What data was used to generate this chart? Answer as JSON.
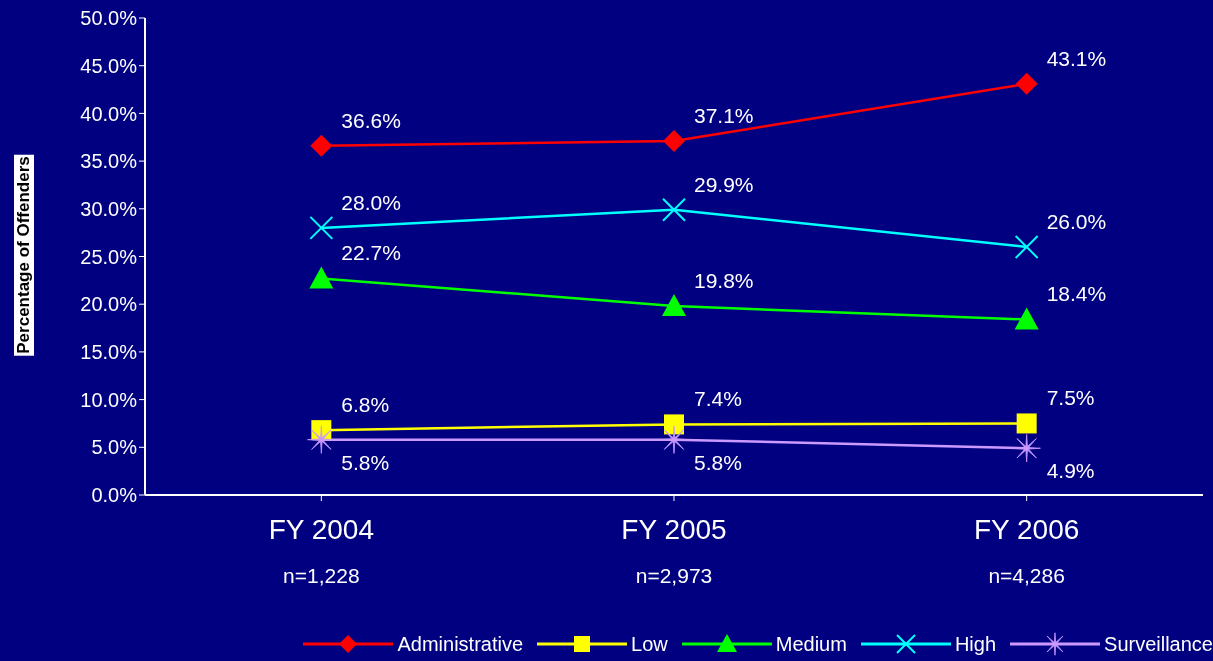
{
  "chart_data": {
    "type": "line",
    "ylabel": "Percentage of Offenders",
    "categories": [
      "FY 2004",
      "FY 2005",
      "FY 2006"
    ],
    "annotations": [
      "n=1,228",
      "n=2,973",
      "n=4,286"
    ],
    "ylim": [
      0,
      50
    ],
    "yticks": [
      {
        "value": 0,
        "label": "0.0%"
      },
      {
        "value": 5,
        "label": "5.0%"
      },
      {
        "value": 10,
        "label": "10.0%"
      },
      {
        "value": 15,
        "label": "15.0%"
      },
      {
        "value": 20,
        "label": "20.0%"
      },
      {
        "value": 25,
        "label": "25.0%"
      },
      {
        "value": 30,
        "label": "30.0%"
      },
      {
        "value": 35,
        "label": "35.0%"
      },
      {
        "value": 40,
        "label": "40.0%"
      },
      {
        "value": 45,
        "label": "45.0%"
      },
      {
        "value": 50,
        "label": "50.0%"
      }
    ],
    "grid": false,
    "legend": "bottom",
    "series": [
      {
        "name": "Administrative",
        "color": "#ff0000",
        "marker": "diamond",
        "values": [
          36.6,
          37.1,
          43.1
        ],
        "value_labels": [
          "36.6%",
          "37.1%",
          "43.1%"
        ]
      },
      {
        "name": "Low",
        "color": "#ffff00",
        "marker": "square",
        "values": [
          6.8,
          7.4,
          7.5
        ],
        "value_labels": [
          "6.8%",
          "7.4%",
          "7.5%"
        ]
      },
      {
        "name": "Medium",
        "color": "#00ff00",
        "marker": "triangle",
        "values": [
          22.7,
          19.8,
          18.4
        ],
        "value_labels": [
          "22.7%",
          "19.8%",
          "18.4%"
        ]
      },
      {
        "name": "High",
        "color": "#00ffff",
        "marker": "cross",
        "values": [
          28.0,
          29.9,
          26.0
        ],
        "value_labels": [
          "28.0%",
          "29.9%",
          "26.0%"
        ]
      },
      {
        "name": "Surveillance",
        "color": "#cc99ff",
        "marker": "star",
        "values": [
          5.8,
          5.8,
          4.9
        ],
        "value_labels": [
          "5.8%",
          "5.8%",
          "4.9%"
        ]
      }
    ]
  }
}
